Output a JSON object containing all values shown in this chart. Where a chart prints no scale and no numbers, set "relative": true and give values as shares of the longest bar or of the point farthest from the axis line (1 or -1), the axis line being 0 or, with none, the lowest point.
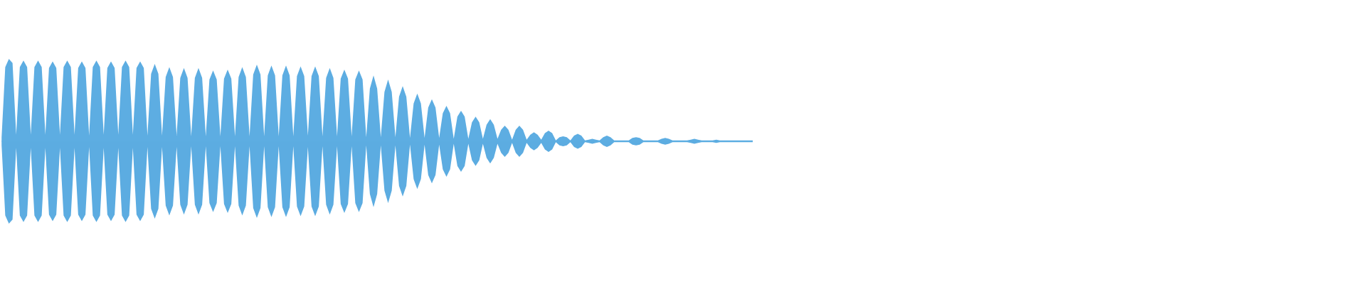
{
  "chart_data": {
    "type": "area",
    "relative": true,
    "categories": [
      null,
      null,
      null,
      null,
      null,
      null,
      null,
      null,
      null,
      null,
      null,
      null,
      null,
      null,
      null,
      null,
      null,
      null,
      null,
      null,
      null,
      null,
      null,
      null,
      null,
      null,
      null,
      null,
      null,
      null,
      null,
      null,
      null,
      null,
      null,
      null,
      null,
      null,
      null,
      null,
      null,
      null,
      null,
      null,
      null,
      null,
      null,
      null,
      null,
      null,
      null,
      null,
      null,
      null,
      null,
      null,
      null,
      null,
      null,
      null,
      null,
      null,
      null,
      null,
      null,
      null,
      null,
      null,
      null,
      null,
      null,
      null,
      null,
      null,
      null,
      null,
      null,
      null,
      null,
      null,
      null,
      null,
      null,
      null,
      null,
      null,
      null,
      null,
      null,
      null,
      null,
      null,
      null,
      null,
      null,
      null,
      null,
      null,
      null,
      null,
      null,
      null,
      null,
      null,
      null,
      null,
      null,
      null,
      null,
      null,
      null,
      null,
      null,
      null,
      null,
      null,
      null,
      null,
      null,
      null,
      null,
      null,
      null,
      null,
      null,
      null,
      null,
      null,
      null,
      null,
      null,
      null,
      null,
      null,
      null,
      null,
      null,
      null,
      null,
      null,
      null,
      null,
      null,
      null,
      null,
      null,
      null,
      null,
      null,
      null,
      null,
      null,
      null,
      null,
      null,
      null,
      null,
      null,
      null,
      null,
      null,
      null,
      null,
      null,
      null,
      null,
      null,
      null,
      null,
      null,
      null,
      null,
      null,
      null,
      null,
      null,
      null,
      null,
      null,
      null,
      null,
      null,
      null,
      null,
      null,
      null,
      null,
      null,
      null,
      null,
      null,
      null,
      null,
      null,
      null,
      null,
      null,
      null,
      null,
      null,
      null,
      null,
      null,
      null,
      null,
      null,
      null
    ],
    "series": [
      {
        "color": "#5dade2",
        "values": [
          0.05,
          0.9,
          1,
          0.95,
          0.08,
          0.9,
          0.98,
          0.9,
          0.08,
          0.9,
          0.98,
          0.9,
          0.08,
          0.89,
          0.97,
          0.89,
          0.08,
          0.9,
          0.98,
          0.9,
          0.08,
          0.89,
          0.97,
          0.89,
          0.07,
          0.9,
          0.98,
          0.9,
          0.08,
          0.89,
          0.97,
          0.89,
          0.08,
          0.9,
          0.98,
          0.9,
          0.08,
          0.89,
          0.97,
          0.89,
          0.07,
          0.82,
          0.94,
          0.82,
          0.07,
          0.78,
          0.9,
          0.78,
          0.07,
          0.77,
          0.89,
          0.77,
          0.06,
          0.77,
          0.89,
          0.77,
          0.06,
          0.75,
          0.86,
          0.75,
          0.06,
          0.76,
          0.87,
          0.76,
          0.06,
          0.78,
          0.9,
          0.78,
          0.06,
          0.81,
          0.93,
          0.81,
          0.06,
          0.8,
          0.92,
          0.8,
          0.06,
          0.8,
          0.92,
          0.8,
          0.06,
          0.79,
          0.91,
          0.79,
          0.07,
          0.79,
          0.91,
          0.79,
          0.06,
          0.77,
          0.89,
          0.77,
          0.06,
          0.76,
          0.87,
          0.76,
          0.06,
          0.75,
          0.86,
          0.75,
          0.05,
          0.64,
          0.8,
          0.64,
          0.05,
          0.6,
          0.75,
          0.6,
          0.05,
          0.54,
          0.67,
          0.54,
          0.04,
          0.46,
          0.58,
          0.46,
          0.04,
          0.41,
          0.51,
          0.41,
          0.04,
          0.34,
          0.43,
          0.34,
          0.03,
          0.3,
          0.37,
          0.3,
          0.03,
          0.23,
          0.3,
          0.23,
          0.03,
          0.2,
          0.27,
          0.2,
          0.03,
          0.14,
          0.19,
          0.14,
          0.02,
          0.14,
          0.19,
          0.14,
          0.02,
          0.08,
          0.11,
          0.08,
          0.02,
          0.1,
          0.13,
          0.1,
          0.01,
          0.05,
          0.06,
          0.05,
          0.01,
          0.07,
          0.09,
          0.07,
          0.01,
          0.02,
          0.03,
          0.02,
          0.01,
          0.05,
          0.07,
          0.05,
          0.01,
          0.01,
          0.01,
          0.01,
          0.01,
          0.04,
          0.05,
          0.04,
          0.01,
          0.01,
          0.01,
          0.01,
          0.01,
          0.03,
          0.04,
          0.03,
          0.01,
          0.01,
          0.01,
          0.01,
          0.01,
          0.02,
          0.03,
          0.02,
          0.01,
          0.01,
          0.01,
          0.01,
          0.02,
          0.01,
          0.01,
          0.01,
          0.01,
          0.01,
          0.01,
          0.01,
          0.01,
          0.01,
          0.01
        ]
      },
      {
        "color": "#5cace1",
        "values": [
          -0.05,
          -0.9,
          -1,
          -0.95,
          -0.08,
          -0.9,
          -0.98,
          -0.9,
          -0.08,
          -0.9,
          -0.98,
          -0.9,
          -0.08,
          -0.89,
          -0.97,
          -0.89,
          -0.08,
          -0.9,
          -0.98,
          -0.9,
          -0.08,
          -0.89,
          -0.97,
          -0.89,
          -0.07,
          -0.9,
          -0.98,
          -0.9,
          -0.08,
          -0.89,
          -0.97,
          -0.89,
          -0.08,
          -0.9,
          -0.98,
          -0.9,
          -0.08,
          -0.89,
          -0.97,
          -0.89,
          -0.07,
          -0.82,
          -0.94,
          -0.82,
          -0.07,
          -0.78,
          -0.9,
          -0.78,
          -0.07,
          -0.77,
          -0.89,
          -0.77,
          -0.06,
          -0.77,
          -0.89,
          -0.77,
          -0.06,
          -0.75,
          -0.86,
          -0.75,
          -0.06,
          -0.76,
          -0.87,
          -0.76,
          -0.06,
          -0.78,
          -0.9,
          -0.78,
          -0.06,
          -0.81,
          -0.93,
          -0.81,
          -0.06,
          -0.8,
          -0.92,
          -0.8,
          -0.06,
          -0.8,
          -0.92,
          -0.8,
          -0.06,
          -0.79,
          -0.91,
          -0.79,
          -0.07,
          -0.79,
          -0.91,
          -0.79,
          -0.06,
          -0.77,
          -0.89,
          -0.77,
          -0.06,
          -0.76,
          -0.87,
          -0.76,
          -0.06,
          -0.75,
          -0.86,
          -0.75,
          -0.05,
          -0.64,
          -0.8,
          -0.64,
          -0.05,
          -0.6,
          -0.75,
          -0.6,
          -0.05,
          -0.54,
          -0.67,
          -0.54,
          -0.04,
          -0.46,
          -0.58,
          -0.46,
          -0.04,
          -0.41,
          -0.51,
          -0.41,
          -0.04,
          -0.34,
          -0.43,
          -0.34,
          -0.03,
          -0.3,
          -0.37,
          -0.3,
          -0.03,
          -0.23,
          -0.3,
          -0.23,
          -0.03,
          -0.2,
          -0.27,
          -0.2,
          -0.03,
          -0.14,
          -0.19,
          -0.14,
          -0.02,
          -0.14,
          -0.19,
          -0.14,
          -0.02,
          -0.08,
          -0.11,
          -0.08,
          -0.02,
          -0.1,
          -0.13,
          -0.1,
          -0.01,
          -0.05,
          -0.06,
          -0.05,
          -0.01,
          -0.07,
          -0.09,
          -0.07,
          -0.01,
          -0.02,
          -0.03,
          -0.02,
          -0.01,
          -0.05,
          -0.07,
          -0.05,
          -0.01,
          -0.01,
          -0.01,
          -0.01,
          -0.01,
          -0.04,
          -0.05,
          -0.04,
          -0.01,
          -0.01,
          -0.01,
          -0.01,
          -0.01,
          -0.03,
          -0.04,
          -0.03,
          -0.01,
          -0.01,
          -0.01,
          -0.01,
          -0.01,
          -0.02,
          -0.03,
          -0.02,
          -0.01,
          -0.01,
          -0.01,
          -0.01,
          -0.02,
          -0.01,
          -0.01,
          -0.01,
          -0.01,
          -0.01,
          -0.01,
          -0.01,
          -0.01,
          -0.01,
          -0.01
        ]
      }
    ]
  }
}
